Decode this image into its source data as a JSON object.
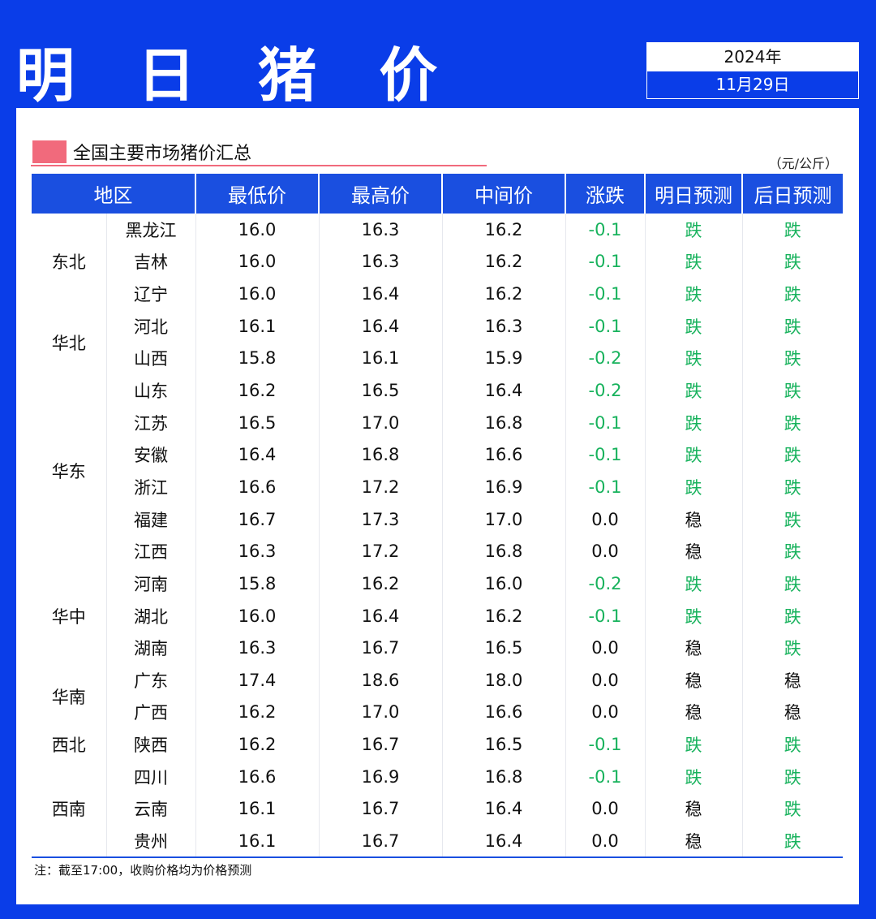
{
  "header": {
    "title": "明 日 猪 价",
    "year": "2024年",
    "date": "11月29日"
  },
  "section": {
    "title": "全国主要市场猪价汇总",
    "unit": "（元/公斤）"
  },
  "columns": [
    "地区",
    "最低价",
    "最高价",
    "中间价",
    "涨跌",
    "明日预测",
    "后日预测"
  ],
  "regions": [
    {
      "name": "东北",
      "start": 0,
      "span": 3
    },
    {
      "name": "华北",
      "start": 3,
      "span": 2
    },
    {
      "name": "华东",
      "start": 5,
      "span": 6
    },
    {
      "name": "华中",
      "start": 11,
      "span": 3
    },
    {
      "name": "华南",
      "start": 14,
      "span": 2
    },
    {
      "name": "西北",
      "start": 16,
      "span": 1
    },
    {
      "name": "西南",
      "start": 17,
      "span": 3
    }
  ],
  "rows": [
    {
      "province": "黑龙江",
      "low": "16.0",
      "high": "16.3",
      "mid": "16.2",
      "change": "-0.1",
      "tomorrow": "跌",
      "after": "跌"
    },
    {
      "province": "吉林",
      "low": "16.0",
      "high": "16.3",
      "mid": "16.2",
      "change": "-0.1",
      "tomorrow": "跌",
      "after": "跌"
    },
    {
      "province": "辽宁",
      "low": "16.0",
      "high": "16.4",
      "mid": "16.2",
      "change": "-0.1",
      "tomorrow": "跌",
      "after": "跌"
    },
    {
      "province": "河北",
      "low": "16.1",
      "high": "16.4",
      "mid": "16.3",
      "change": "-0.1",
      "tomorrow": "跌",
      "after": "跌"
    },
    {
      "province": "山西",
      "low": "15.8",
      "high": "16.1",
      "mid": "15.9",
      "change": "-0.2",
      "tomorrow": "跌",
      "after": "跌"
    },
    {
      "province": "山东",
      "low": "16.2",
      "high": "16.5",
      "mid": "16.4",
      "change": "-0.2",
      "tomorrow": "跌",
      "after": "跌"
    },
    {
      "province": "江苏",
      "low": "16.5",
      "high": "17.0",
      "mid": "16.8",
      "change": "-0.1",
      "tomorrow": "跌",
      "after": "跌"
    },
    {
      "province": "安徽",
      "low": "16.4",
      "high": "16.8",
      "mid": "16.6",
      "change": "-0.1",
      "tomorrow": "跌",
      "after": "跌"
    },
    {
      "province": "浙江",
      "low": "16.6",
      "high": "17.2",
      "mid": "16.9",
      "change": "-0.1",
      "tomorrow": "跌",
      "after": "跌"
    },
    {
      "province": "福建",
      "low": "16.7",
      "high": "17.3",
      "mid": "17.0",
      "change": "0.0",
      "tomorrow": "稳",
      "after": "跌"
    },
    {
      "province": "江西",
      "low": "16.3",
      "high": "17.2",
      "mid": "16.8",
      "change": "0.0",
      "tomorrow": "稳",
      "after": "跌"
    },
    {
      "province": "河南",
      "low": "15.8",
      "high": "16.2",
      "mid": "16.0",
      "change": "-0.2",
      "tomorrow": "跌",
      "after": "跌"
    },
    {
      "province": "湖北",
      "low": "16.0",
      "high": "16.4",
      "mid": "16.2",
      "change": "-0.1",
      "tomorrow": "跌",
      "after": "跌"
    },
    {
      "province": "湖南",
      "low": "16.3",
      "high": "16.7",
      "mid": "16.5",
      "change": "0.0",
      "tomorrow": "稳",
      "after": "跌"
    },
    {
      "province": "广东",
      "low": "17.4",
      "high": "18.6",
      "mid": "18.0",
      "change": "0.0",
      "tomorrow": "稳",
      "after": "稳"
    },
    {
      "province": "广西",
      "low": "16.2",
      "high": "17.0",
      "mid": "16.6",
      "change": "0.0",
      "tomorrow": "稳",
      "after": "稳"
    },
    {
      "province": "陕西",
      "low": "16.2",
      "high": "16.7",
      "mid": "16.5",
      "change": "-0.1",
      "tomorrow": "跌",
      "after": "跌"
    },
    {
      "province": "四川",
      "low": "16.6",
      "high": "16.9",
      "mid": "16.8",
      "change": "-0.1",
      "tomorrow": "跌",
      "after": "跌"
    },
    {
      "province": "云南",
      "low": "16.1",
      "high": "16.7",
      "mid": "16.4",
      "change": "0.0",
      "tomorrow": "稳",
      "after": "跌"
    },
    {
      "province": "贵州",
      "low": "16.1",
      "high": "16.7",
      "mid": "16.4",
      "change": "0.0",
      "tomorrow": "稳",
      "after": "跌"
    }
  ],
  "note": "注：截至17:00，收购价格均为价格预测",
  "colors": {
    "brand_blue": "#0a3de8",
    "header_blue": "#1a4fe0",
    "down_green": "#17b25c",
    "accent_pink": "#f16a7c"
  }
}
